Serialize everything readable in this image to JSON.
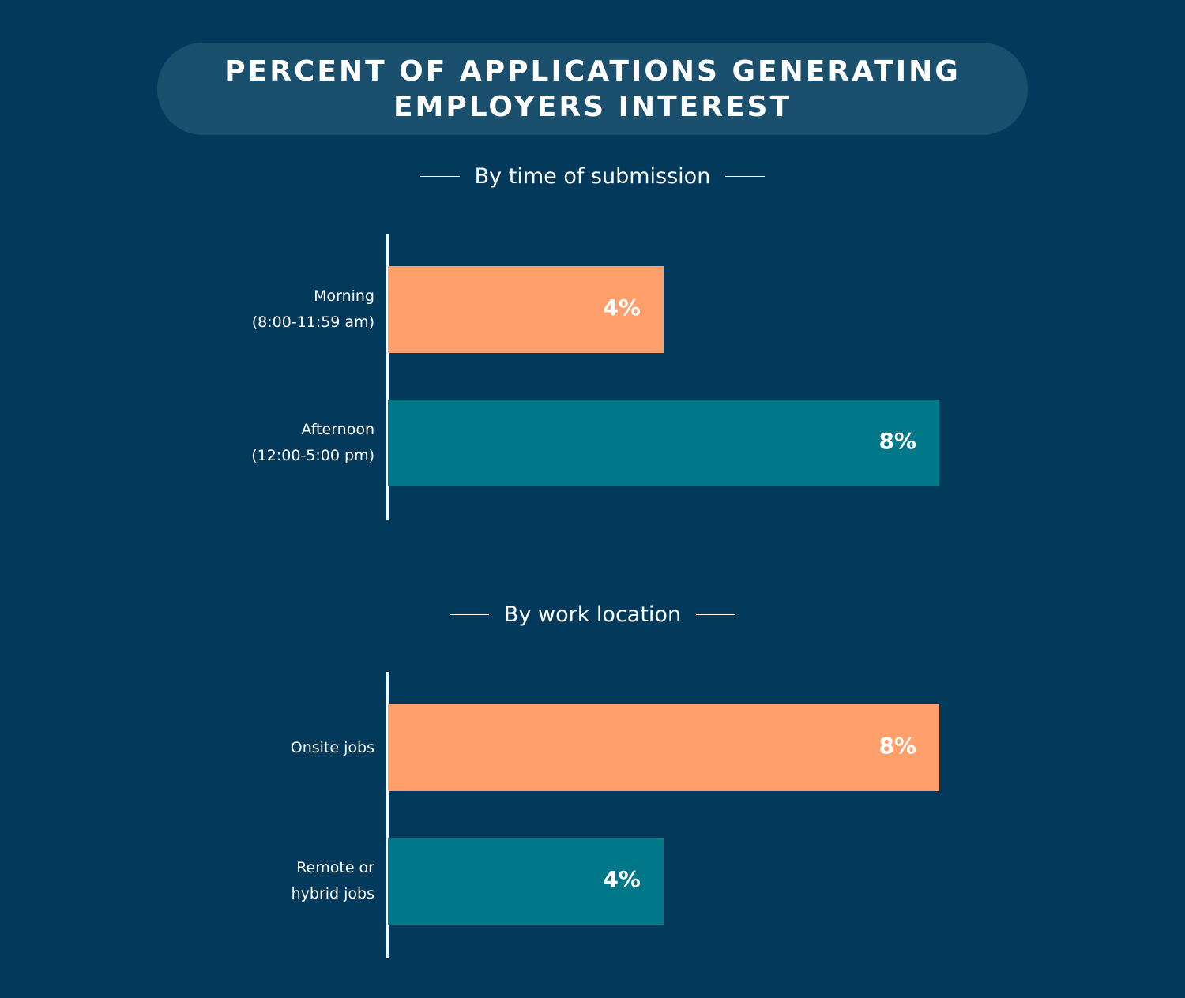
{
  "title": "PERCENT OF APPLICATIONS GENERATING EMPLOYERS INTEREST",
  "colors": {
    "background": "#033a5c",
    "title_pill": "#1b4f6e",
    "orange": "#ff9f6b",
    "teal": "#00788a"
  },
  "chart_data": [
    {
      "type": "bar",
      "orientation": "horizontal",
      "title": "By time of submission",
      "categories": [
        "Morning\n(8:00-11:59 am)",
        "Afternoon\n(12:00-5:00 pm)"
      ],
      "category_lines": [
        [
          "Morning",
          "(8:00-11:59 am)"
        ],
        [
          "Afternoon",
          "(12:00-5:00 pm)"
        ]
      ],
      "values": [
        4,
        8
      ],
      "data_labels": [
        "4%",
        "8%"
      ],
      "bar_colors": [
        "#ff9f6b",
        "#00788a"
      ],
      "xlim": [
        0,
        8
      ],
      "grid": false
    },
    {
      "type": "bar",
      "orientation": "horizontal",
      "title": "By work location",
      "categories": [
        "Onsite jobs",
        "Remote or\nhybrid jobs"
      ],
      "category_lines": [
        [
          "Onsite jobs"
        ],
        [
          "Remote or",
          "hybrid jobs"
        ]
      ],
      "values": [
        8,
        4
      ],
      "data_labels": [
        "8%",
        "4%"
      ],
      "bar_colors": [
        "#ff9f6b",
        "#00788a"
      ],
      "xlim": [
        0,
        8
      ],
      "grid": false
    }
  ]
}
